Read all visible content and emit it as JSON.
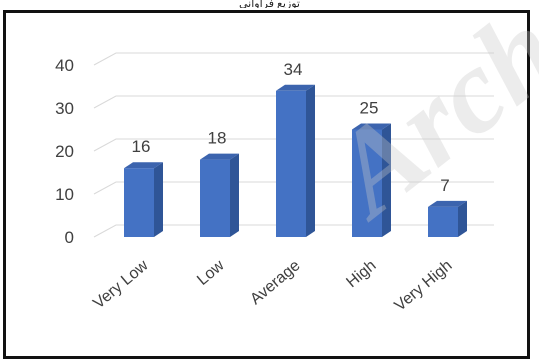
{
  "caption": "ﺗﻮزﻳﻊ ﻓﺮاواﻧﻲ",
  "watermark": "Arch",
  "chart_data": {
    "type": "bar",
    "style": "3d-column",
    "categories": [
      "Very Low",
      "Low",
      "Average",
      "High",
      "Very High"
    ],
    "values": [
      16,
      18,
      34,
      25,
      7
    ],
    "data_labels": [
      "16",
      "18",
      "34",
      "25",
      "7"
    ],
    "y_ticks": [
      "0",
      "10",
      "20",
      "30",
      "40"
    ],
    "ylim": [
      0,
      40
    ],
    "grid": true,
    "legend": "none",
    "bar_color": "#4472c4",
    "bar_side_color": "#2f5597",
    "bar_top_color": "#3c64ae",
    "grid_color": "#d9d9d9",
    "label_color": "#404040"
  }
}
